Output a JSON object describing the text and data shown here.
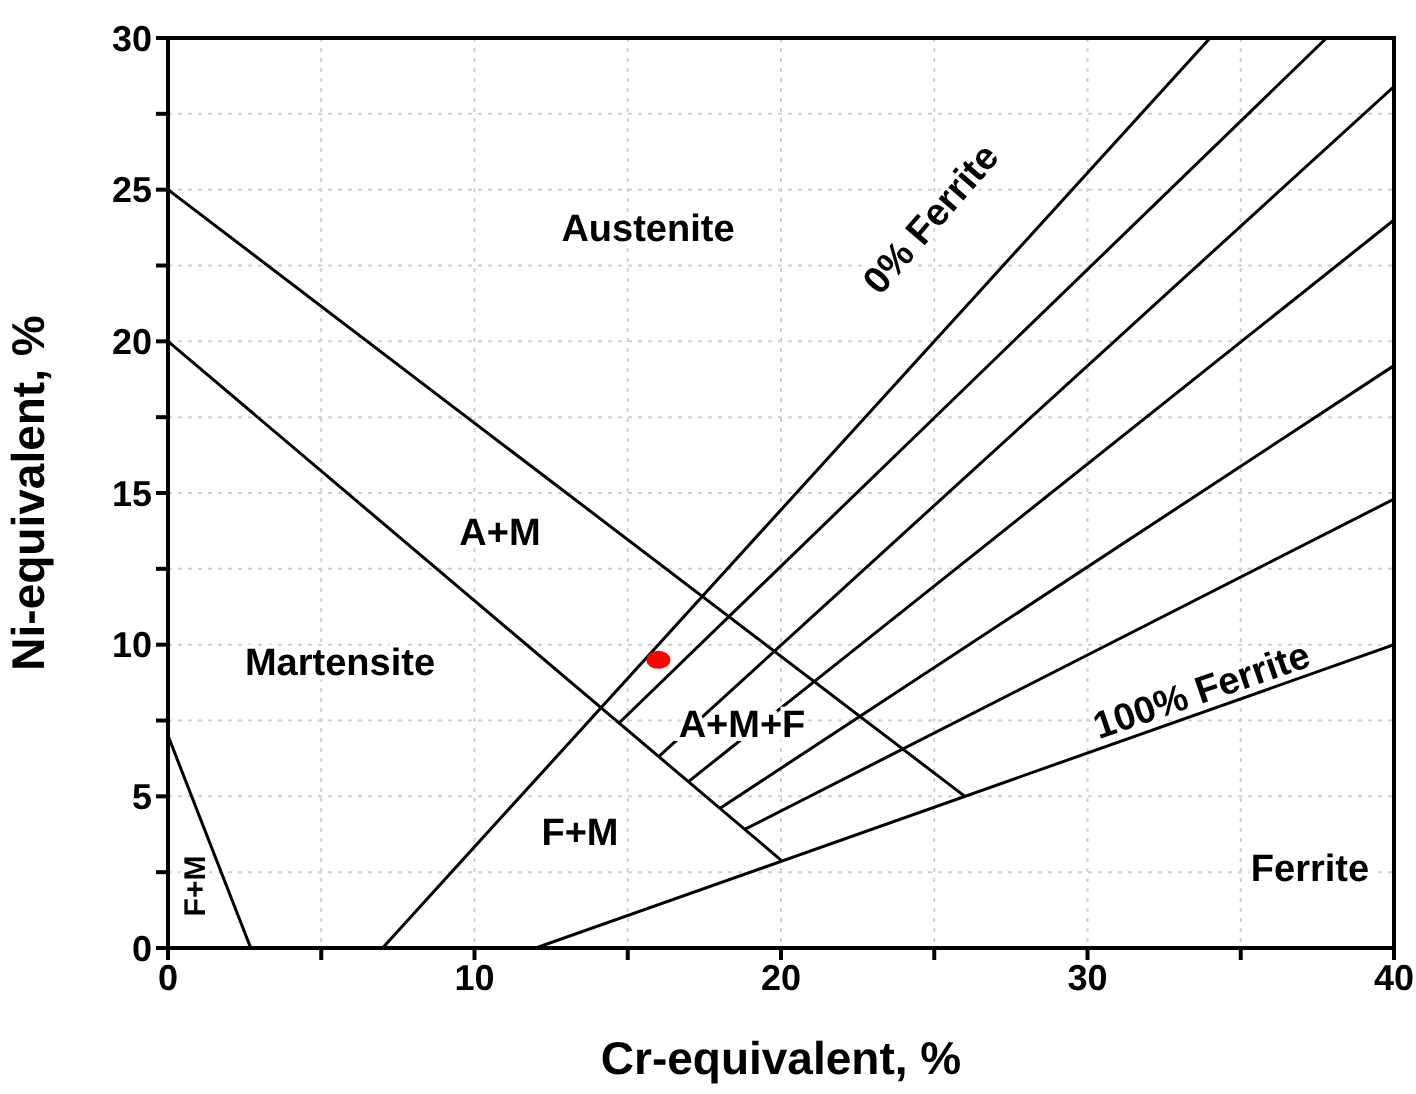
{
  "chart_data": {
    "type": "line",
    "xlabel": "Cr-equivalent, %",
    "ylabel": "Ni-equivalent, %",
    "xlim": [
      0,
      40
    ],
    "ylim": [
      0,
      30
    ],
    "xticks": [
      0,
      {
        "value": 5,
        "label": null
      },
      10,
      {
        "value": 15,
        "label": null
      },
      20,
      {
        "value": 25,
        "label": null
      },
      30,
      {
        "value": 35,
        "label": null
      },
      40
    ],
    "yticks": [
      0,
      {
        "value": 2.5,
        "label": null
      },
      5,
      {
        "value": 7.5,
        "label": null
      },
      10,
      {
        "value": 12.5,
        "label": null
      },
      15,
      {
        "value": 17.5,
        "label": null
      },
      20,
      {
        "value": 22.5,
        "label": null
      },
      25,
      {
        "value": 27.5,
        "label": null
      },
      30
    ],
    "grid": true,
    "marker": "none",
    "line_style": "solid",
    "series": [
      {
        "color": "#000000",
        "x": [
          0,
          26
        ],
        "values": [
          25,
          5
        ]
      },
      {
        "color": "#000000",
        "x": [
          0,
          20
        ],
        "values": [
          20,
          2.9
        ]
      },
      {
        "color": "#000000",
        "x": [
          0,
          2.7
        ],
        "values": [
          7,
          0
        ]
      },
      {
        "color": "#000000",
        "x": [
          7,
          34
        ],
        "values": [
          0,
          30
        ]
      },
      {
        "color": "#000000",
        "x": [
          14.7,
          37.8
        ],
        "values": [
          7.4,
          30
        ]
      },
      {
        "color": "#000000",
        "x": [
          16,
          40
        ],
        "values": [
          6.3,
          28.4
        ]
      },
      {
        "color": "#000000",
        "x": [
          17,
          40
        ],
        "values": [
          5.5,
          24
        ]
      },
      {
        "color": "#000000",
        "x": [
          18,
          40
        ],
        "values": [
          4.6,
          19.2
        ]
      },
      {
        "color": "#000000",
        "x": [
          18.8,
          40
        ],
        "values": [
          3.9,
          14.8
        ]
      },
      {
        "color": "#000000",
        "x": [
          12,
          40
        ],
        "values": [
          0,
          10
        ]
      },
      {
        "type": "scatter",
        "color": "#ff0000",
        "marker": "circle",
        "x": [
          16
        ],
        "values": [
          9.5
        ]
      }
    ],
    "annotations": [
      "Austenite",
      "A+M",
      "Martensite",
      "0% Ferrite",
      "A+M+F",
      "F+M",
      "Ferrite",
      "100% Ferrite",
      "F+M"
    ]
  }
}
